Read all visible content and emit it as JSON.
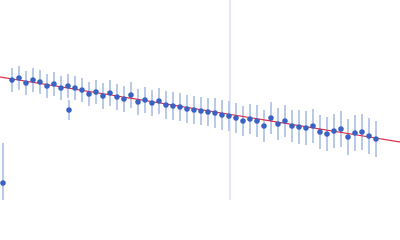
{
  "chart_data": {
    "type": "scatter",
    "xlim": [
      0,
      400
    ],
    "ylim": [
      0,
      200
    ],
    "reference_x": 230,
    "reference_color": "#c8d0e0",
    "fit": {
      "color": "#e0304a",
      "x": [
        0,
        400
      ],
      "y": [
        123,
        58
      ]
    },
    "series": [
      {
        "color": "#3a62c2",
        "error_color": "#b9c9e9",
        "x": [
          12,
          19,
          26,
          33,
          40,
          47,
          54,
          61,
          68,
          75,
          82,
          89,
          96,
          103,
          110,
          117,
          124,
          131,
          138,
          145,
          152,
          159,
          166,
          173,
          180,
          187,
          194,
          201,
          208,
          215,
          222,
          229,
          236,
          243,
          250,
          257,
          264,
          271,
          278,
          285,
          292,
          299,
          306,
          313,
          320,
          327,
          334,
          341,
          348,
          355,
          362,
          369,
          376,
          69,
          3
        ],
        "y": [
          120,
          122,
          117,
          120,
          118,
          114,
          116,
          112,
          114,
          112,
          110,
          106,
          108,
          104,
          107,
          103,
          101,
          105,
          98,
          100,
          97,
          99,
          95,
          94,
          93,
          91,
          90,
          89,
          88,
          87,
          85,
          84,
          82,
          79,
          81,
          79,
          74,
          82,
          76,
          79,
          74,
          73,
          72,
          74,
          68,
          66,
          69,
          71,
          63,
          67,
          68,
          64,
          61,
          90,
          17
        ],
        "error": [
          12,
          12,
          12,
          12,
          12,
          12,
          12,
          12,
          12,
          12,
          12,
          12,
          12,
          13,
          13,
          13,
          13,
          13,
          13,
          13,
          13,
          13,
          14,
          14,
          14,
          14,
          14,
          14,
          14,
          15,
          15,
          15,
          15,
          15,
          15,
          16,
          16,
          16,
          16,
          16,
          16,
          17,
          17,
          17,
          17,
          17,
          17,
          18,
          18,
          18,
          18,
          18,
          18,
          10,
          40
        ]
      }
    ]
  }
}
